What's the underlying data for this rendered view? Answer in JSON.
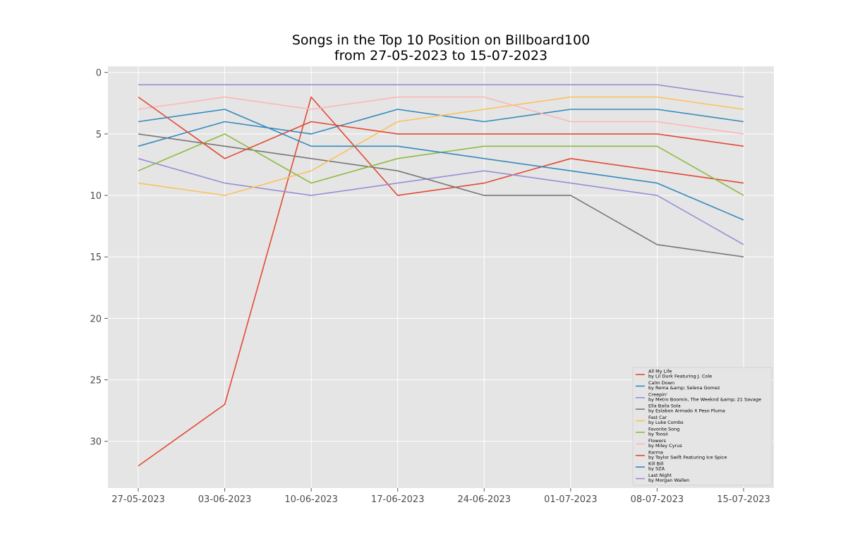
{
  "chart_data": {
    "type": "line",
    "title": [
      "Songs in the Top 10 Position on Billboard100",
      "from 27-05-2023 to 15-07-2023"
    ],
    "xlabel": "",
    "ylabel": "",
    "x": [
      "27-05-2023",
      "03-06-2023",
      "10-06-2023",
      "17-06-2023",
      "24-06-2023",
      "01-07-2023",
      "08-07-2023",
      "15-07-2023"
    ],
    "ylim": [
      33.8,
      -0.5
    ],
    "yticks": [
      0,
      5,
      10,
      15,
      20,
      25,
      30
    ],
    "y_inverted": true,
    "grid": true,
    "legend_position": "lower-right",
    "series": [
      {
        "title": "All My Life",
        "artist": "by Lil Durk Featuring J. Cole",
        "color": "#E24A33",
        "values": [
          32,
          27,
          2,
          10,
          9,
          7,
          8,
          9
        ]
      },
      {
        "title": "Calm Down",
        "artist": "by Rema &amp; Selena Gomez",
        "color": "#348ABD",
        "values": [
          6,
          4,
          5,
          3,
          4,
          3,
          3,
          4
        ]
      },
      {
        "title": "Creepin'",
        "artist": "by Metro Boomin, The Weeknd &amp; 21 Savage",
        "color": "#988ED5",
        "values": [
          7,
          9,
          10,
          9,
          8,
          9,
          10,
          14
        ]
      },
      {
        "title": "Ella Baila Sola",
        "artist": "by Eslabon Armado X Peso Pluma",
        "color": "#777777",
        "values": [
          5,
          6,
          7,
          8,
          10,
          10,
          14,
          15
        ]
      },
      {
        "title": "Fast Car",
        "artist": "by Luke Combs",
        "color": "#FBC15E",
        "values": [
          9,
          10,
          8,
          4,
          3,
          2,
          2,
          3
        ]
      },
      {
        "title": "Favorite Song",
        "artist": "by Toosii",
        "color": "#8EBA42",
        "values": [
          8,
          5,
          9,
          7,
          6,
          6,
          6,
          10
        ]
      },
      {
        "title": "Flowers",
        "artist": "by Miley Cyrus",
        "color": "#FFB5B8",
        "values": [
          3,
          2,
          3,
          2,
          2,
          4,
          4,
          5
        ]
      },
      {
        "title": "Karma",
        "artist": "by Taylor Swift Featuring Ice Spice",
        "color": "#E24A33",
        "values": [
          2,
          7,
          4,
          5,
          5,
          5,
          5,
          6
        ]
      },
      {
        "title": "Kill Bill",
        "artist": "by SZA",
        "color": "#348ABD",
        "values": [
          4,
          3,
          6,
          6,
          7,
          8,
          9,
          12
        ]
      },
      {
        "title": "Last Night",
        "artist": "by Morgan Wallen",
        "color": "#988ED5",
        "values": [
          1,
          1,
          1,
          1,
          1,
          1,
          1,
          2
        ]
      }
    ]
  }
}
